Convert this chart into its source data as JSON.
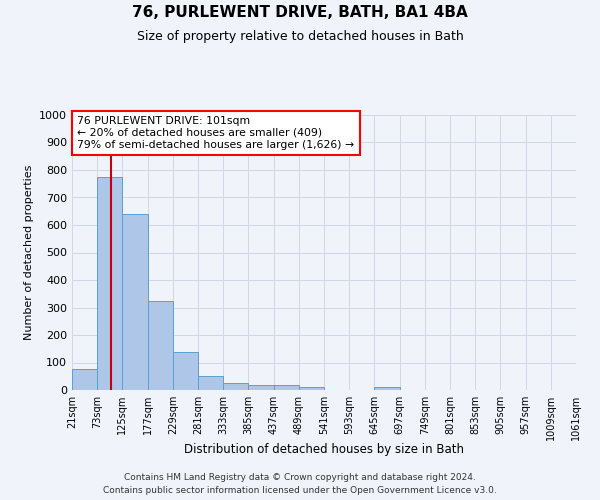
{
  "title": "76, PURLEWENT DRIVE, BATH, BA1 4BA",
  "subtitle": "Size of property relative to detached houses in Bath",
  "xlabel": "Distribution of detached houses by size in Bath",
  "ylabel": "Number of detached properties",
  "annotation_line1": "76 PURLEWENT DRIVE: 101sqm",
  "annotation_line2": "← 20% of detached houses are smaller (409)",
  "annotation_line3": "79% of semi-detached houses are larger (1,626) →",
  "property_size_sqm": 101,
  "bin_edges": [
    21,
    73,
    125,
    177,
    229,
    281,
    333,
    385,
    437,
    489,
    541,
    593,
    645,
    697,
    749,
    801,
    853,
    905,
    957,
    1009,
    1061
  ],
  "bar_values": [
    75,
    775,
    640,
    325,
    140,
    50,
    25,
    20,
    20,
    10,
    0,
    0,
    10,
    0,
    0,
    0,
    0,
    0,
    0,
    0
  ],
  "bar_color": "#aec6e8",
  "bar_edgecolor": "#5a9fd4",
  "vline_color": "#cc0000",
  "vline_x": 101,
  "ylim": [
    0,
    1000
  ],
  "yticks": [
    0,
    100,
    200,
    300,
    400,
    500,
    600,
    700,
    800,
    900,
    1000
  ],
  "grid_color": "#d0d8e8",
  "background_color": "#f0f4fa",
  "footer1": "Contains HM Land Registry data © Crown copyright and database right 2024.",
  "footer2": "Contains public sector information licensed under the Open Government Licence v3.0."
}
